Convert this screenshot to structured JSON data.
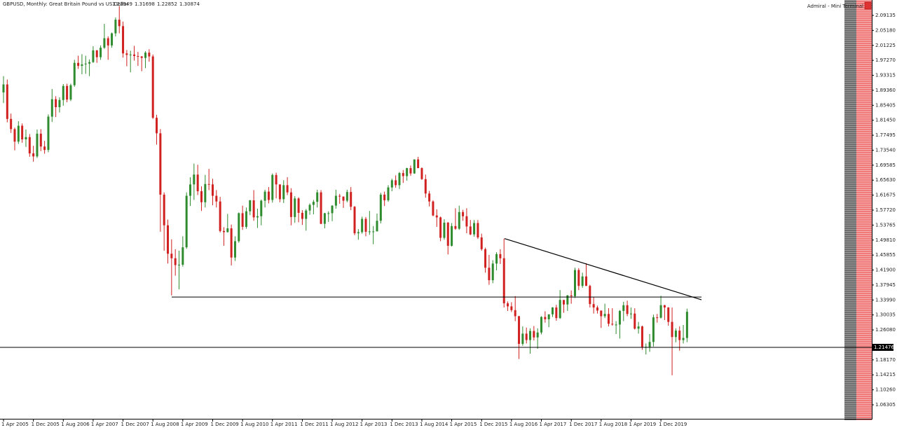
{
  "chart_data": {
    "type": "candlestick",
    "title": "GBPUSD, Monthly:  Great Britain Pound vs US Dollar",
    "terminal_label": "Admiral - Mini Terminal",
    "up_color": "#2e8b2e",
    "down_color": "#d0201f",
    "categories": [
      "1 Apr 2005",
      null,
      null,
      null,
      null,
      null,
      null,
      null,
      "1 Dec 2005",
      null,
      null,
      null,
      null,
      null,
      null,
      null,
      "1 Aug 2006",
      null,
      null,
      null,
      null,
      null,
      null,
      null,
      "1 Apr 2007",
      null,
      null,
      null,
      null,
      null,
      null,
      null,
      "1 Dec 2007",
      null,
      null,
      null,
      null,
      null,
      null,
      null,
      "1 Aug 2008",
      null,
      null,
      null,
      null,
      null,
      null,
      null,
      "1 Apr 2009",
      null,
      null,
      null,
      null,
      null,
      null,
      null,
      "1 Dec 2009",
      null,
      null,
      null,
      null,
      null,
      null,
      null,
      "1 Aug 2010",
      null,
      null,
      null,
      null,
      null,
      null,
      null,
      "1 Apr 2011",
      null,
      null,
      null,
      null,
      null,
      null,
      null,
      "1 Dec 2011",
      null,
      null,
      null,
      null,
      null,
      null,
      null,
      "1 Aug 2012",
      null,
      null,
      null,
      null,
      null,
      null,
      null,
      "1 Apr 2013",
      null,
      null,
      null,
      null,
      null,
      null,
      null,
      "1 Dec 2013",
      null,
      null,
      null,
      null,
      null,
      null,
      null,
      "1 Aug 2014",
      null,
      null,
      null,
      null,
      null,
      null,
      null,
      "1 Apr 2015",
      null,
      null,
      null,
      null,
      null,
      null,
      null,
      "1 Dec 2015",
      null,
      null,
      null,
      null,
      null,
      null,
      null,
      "1 Aug 2016",
      null,
      null,
      null,
      null,
      null,
      null,
      null,
      "1 Apr 2017",
      null,
      null,
      null,
      null,
      null,
      null,
      null,
      "1 Dec 2017",
      null,
      null,
      null,
      null,
      null,
      null,
      null,
      "1 Aug 2018",
      null,
      null,
      null,
      null,
      null,
      null,
      null,
      "1 Apr 2019",
      null,
      null,
      null,
      null,
      null,
      null,
      null,
      "1 Dec 2019",
      null,
      null,
      null,
      null,
      null,
      null,
      null
    ],
    "open": [
      1.888,
      1.909,
      1.818,
      1.791,
      1.758,
      1.8,
      1.764,
      1.77,
      1.727,
      1.719,
      1.779,
      1.745,
      1.736,
      1.824,
      1.87,
      1.849,
      1.868,
      1.905,
      1.869,
      1.907,
      1.966,
      1.958,
      1.962,
      1.964,
      1.968,
      1.999,
      1.981,
      2.006,
      2.031,
      2.012,
      2.044,
      2.08,
      2.063,
      1.991,
      1.987,
      1.988,
      1.984,
      1.983,
      1.979,
      1.993,
      1.983,
      1.821,
      1.78,
      1.618,
      1.537,
      1.462,
      1.45,
      1.432,
      1.433,
      1.479,
      1.615,
      1.645,
      1.671,
      1.627,
      1.598,
      1.646,
      1.645,
      1.615,
      1.6,
      1.522,
      1.519,
      1.529,
      1.452,
      1.495,
      1.569,
      1.533,
      1.574,
      1.603,
      1.558,
      1.561,
      1.602,
      1.626,
      1.604,
      1.67,
      1.645,
      1.606,
      1.643,
      1.624,
      1.559,
      1.608,
      1.57,
      1.554,
      1.576,
      1.591,
      1.599,
      1.624,
      1.541,
      1.569,
      1.569,
      1.589,
      1.615,
      1.613,
      1.602,
      1.625,
      1.586,
      1.516,
      1.519,
      1.554,
      1.52,
      1.521,
      1.521,
      1.549,
      1.618,
      1.603,
      1.637,
      1.656,
      1.643,
      1.675,
      1.667,
      1.688,
      1.674,
      1.711,
      1.688,
      1.659,
      1.621,
      1.6,
      1.563,
      1.558,
      1.504,
      1.544,
      1.483,
      1.535,
      1.528,
      1.572,
      1.561,
      1.534,
      1.513,
      1.543,
      1.505,
      1.474,
      1.425,
      1.392,
      1.436,
      1.461,
      1.45,
      1.331,
      1.323,
      1.313,
      1.297,
      1.224,
      1.251,
      1.234,
      1.258,
      1.241,
      1.254,
      1.295,
      1.289,
      1.302,
      1.32,
      1.292,
      1.34,
      1.328,
      1.352,
      1.35,
      1.419,
      1.377,
      1.402,
      1.377,
      1.329,
      1.32,
      1.312,
      1.297,
      1.303,
      1.277,
      1.275,
      1.275,
      1.311,
      1.326,
      1.303,
      1.304,
      1.264,
      1.27,
      1.216,
      1.216,
      1.229,
      1.294,
      1.293,
      1.326,
      1.32,
      1.282,
      1.242,
      1.259,
      1.234,
      1.23949
    ],
    "high": [
      1.931,
      1.922,
      1.832,
      1.795,
      1.812,
      1.806,
      1.79,
      1.778,
      1.747,
      1.79,
      1.791,
      1.76,
      1.83,
      1.897,
      1.878,
      1.875,
      1.91,
      1.911,
      1.911,
      1.974,
      1.985,
      1.989,
      1.985,
      1.975,
      2.01,
      2.0,
      2.012,
      2.069,
      2.036,
      2.046,
      2.086,
      2.116,
      2.075,
      2.0,
      1.998,
      2.011,
      1.995,
      1.984,
      1.997,
      2.002,
      1.988,
      1.829,
      1.791,
      1.624,
      1.552,
      1.5,
      1.474,
      1.47,
      1.508,
      1.624,
      1.664,
      1.7,
      1.697,
      1.64,
      1.67,
      1.686,
      1.66,
      1.63,
      1.612,
      1.532,
      1.567,
      1.539,
      1.508,
      1.571,
      1.589,
      1.584,
      1.604,
      1.63,
      1.581,
      1.605,
      1.631,
      1.638,
      1.674,
      1.676,
      1.645,
      1.656,
      1.664,
      1.635,
      1.614,
      1.611,
      1.577,
      1.58,
      1.595,
      1.604,
      1.631,
      1.63,
      1.57,
      1.574,
      1.59,
      1.631,
      1.62,
      1.613,
      1.631,
      1.638,
      1.588,
      1.527,
      1.56,
      1.559,
      1.575,
      1.535,
      1.568,
      1.623,
      1.626,
      1.643,
      1.66,
      1.669,
      1.678,
      1.683,
      1.689,
      1.695,
      1.711,
      1.718,
      1.69,
      1.671,
      1.628,
      1.603,
      1.579,
      1.56,
      1.553,
      1.546,
      1.543,
      1.582,
      1.589,
      1.578,
      1.582,
      1.551,
      1.551,
      1.551,
      1.515,
      1.478,
      1.459,
      1.445,
      1.466,
      1.474,
      1.502,
      1.336,
      1.334,
      1.35,
      1.298,
      1.27,
      1.267,
      1.265,
      1.271,
      1.265,
      1.297,
      1.31,
      1.302,
      1.321,
      1.327,
      1.366,
      1.336,
      1.353,
      1.365,
      1.425,
      1.424,
      1.412,
      1.437,
      1.38,
      1.347,
      1.325,
      1.31,
      1.33,
      1.318,
      1.318,
      1.284,
      1.313,
      1.335,
      1.338,
      1.32,
      1.318,
      1.282,
      1.272,
      1.225,
      1.25,
      1.301,
      1.303,
      1.351,
      1.327,
      1.321,
      1.32,
      1.265,
      1.27,
      1.274,
      1.31698
    ],
    "low": [
      1.86,
      1.809,
      1.781,
      1.735,
      1.752,
      1.755,
      1.744,
      1.718,
      1.705,
      1.715,
      1.733,
      1.726,
      1.73,
      1.81,
      1.823,
      1.835,
      1.853,
      1.862,
      1.865,
      1.903,
      1.95,
      1.936,
      1.937,
      1.931,
      1.966,
      1.966,
      1.974,
      2.003,
      1.974,
      2.006,
      2.036,
      2.044,
      1.98,
      1.957,
      1.941,
      1.972,
      1.958,
      1.944,
      1.952,
      1.969,
      1.818,
      1.75,
      1.52,
      1.47,
      1.436,
      1.352,
      1.404,
      1.368,
      1.428,
      1.475,
      1.588,
      1.604,
      1.617,
      1.575,
      1.584,
      1.63,
      1.59,
      1.584,
      1.518,
      1.483,
      1.518,
      1.431,
      1.443,
      1.491,
      1.525,
      1.528,
      1.564,
      1.549,
      1.53,
      1.537,
      1.584,
      1.595,
      1.597,
      1.608,
      1.598,
      1.596,
      1.617,
      1.537,
      1.544,
      1.545,
      1.538,
      1.523,
      1.565,
      1.566,
      1.584,
      1.54,
      1.529,
      1.546,
      1.548,
      1.581,
      1.594,
      1.583,
      1.598,
      1.577,
      1.511,
      1.499,
      1.515,
      1.508,
      1.512,
      1.487,
      1.521,
      1.542,
      1.588,
      1.599,
      1.627,
      1.636,
      1.633,
      1.649,
      1.655,
      1.668,
      1.673,
      1.688,
      1.657,
      1.61,
      1.587,
      1.561,
      1.533,
      1.495,
      1.499,
      1.46,
      1.481,
      1.525,
      1.525,
      1.549,
      1.516,
      1.511,
      1.507,
      1.501,
      1.47,
      1.412,
      1.38,
      1.384,
      1.418,
      1.435,
      1.32,
      1.311,
      1.308,
      1.284,
      1.184,
      1.219,
      1.225,
      1.198,
      1.233,
      1.211,
      1.249,
      1.28,
      1.268,
      1.295,
      1.285,
      1.29,
      1.306,
      1.311,
      1.33,
      1.345,
      1.366,
      1.372,
      1.377,
      1.32,
      1.304,
      1.304,
      1.266,
      1.292,
      1.27,
      1.272,
      1.25,
      1.238,
      1.284,
      1.297,
      1.29,
      1.262,
      1.251,
      1.208,
      1.196,
      1.203,
      1.217,
      1.28,
      1.291,
      1.287,
      1.272,
      1.141,
      1.228,
      1.206,
      1.225,
      1.22852
    ],
    "close": [
      1.909,
      1.818,
      1.791,
      1.758,
      1.8,
      1.764,
      1.77,
      1.727,
      1.719,
      1.779,
      1.745,
      1.736,
      1.824,
      1.87,
      1.849,
      1.868,
      1.905,
      1.869,
      1.907,
      1.966,
      1.958,
      1.962,
      1.964,
      1.968,
      1.999,
      1.981,
      2.006,
      2.031,
      2.012,
      2.044,
      2.08,
      2.063,
      1.991,
      1.987,
      1.988,
      1.984,
      1.983,
      1.979,
      1.993,
      1.983,
      1.821,
      1.78,
      1.618,
      1.537,
      1.462,
      1.45,
      1.432,
      1.433,
      1.479,
      1.615,
      1.645,
      1.671,
      1.627,
      1.598,
      1.646,
      1.645,
      1.615,
      1.6,
      1.522,
      1.519,
      1.529,
      1.452,
      1.495,
      1.569,
      1.533,
      1.574,
      1.603,
      1.558,
      1.561,
      1.602,
      1.626,
      1.604,
      1.67,
      1.645,
      1.606,
      1.643,
      1.624,
      1.559,
      1.608,
      1.57,
      1.554,
      1.576,
      1.591,
      1.599,
      1.624,
      1.541,
      1.569,
      1.569,
      1.589,
      1.615,
      1.613,
      1.602,
      1.625,
      1.586,
      1.516,
      1.519,
      1.554,
      1.52,
      1.521,
      1.521,
      1.549,
      1.618,
      1.603,
      1.637,
      1.656,
      1.643,
      1.675,
      1.667,
      1.688,
      1.674,
      1.711,
      1.688,
      1.659,
      1.621,
      1.6,
      1.563,
      1.558,
      1.504,
      1.544,
      1.483,
      1.535,
      1.528,
      1.572,
      1.561,
      1.534,
      1.513,
      1.543,
      1.505,
      1.474,
      1.425,
      1.392,
      1.436,
      1.461,
      1.45,
      1.331,
      1.323,
      1.313,
      1.297,
      1.224,
      1.251,
      1.234,
      1.258,
      1.241,
      1.254,
      1.295,
      1.289,
      1.302,
      1.32,
      1.292,
      1.34,
      1.328,
      1.352,
      1.35,
      1.419,
      1.377,
      1.402,
      1.377,
      1.329,
      1.32,
      1.312,
      1.297,
      1.303,
      1.277,
      1.275,
      1.275,
      1.311,
      1.326,
      1.303,
      1.304,
      1.264,
      1.27,
      1.216,
      1.216,
      1.229,
      1.294,
      1.293,
      1.326,
      1.32,
      1.282,
      1.242,
      1.259,
      1.234,
      1.23949,
      1.30874
    ],
    "ylim": [
      1.0261,
      2.132
    ],
    "yticks": [
      2.09135,
      {
        "value": 2.0518,
        "label": "2.05180"
      },
      2.01225,
      {
        "value": 1.9727,
        "label": "1.97270"
      },
      1.93315,
      {
        "value": 1.8936,
        "label": "1.89360"
      },
      1.85405,
      {
        "value": 1.8145,
        "label": "1.81450"
      },
      1.77495,
      {
        "value": 1.7354,
        "label": "1.73540"
      },
      1.69585,
      {
        "value": 1.6563,
        "label": "1.65630"
      },
      1.61675,
      {
        "value": 1.5772,
        "label": "1.57720"
      },
      1.53765,
      {
        "value": 1.4981,
        "label": "1.49810"
      },
      1.45855,
      {
        "value": 1.419,
        "label": "1.41900"
      },
      1.37945,
      {
        "value": 1.3399,
        "label": "1.33990"
      },
      1.30035,
      {
        "value": 1.2608,
        "label": "1.26080"
      },
      {
        "value": 1.1817,
        "label": "1.18170"
      },
      1.14215,
      {
        "value": 1.1026,
        "label": "1.10260"
      },
      1.06305
    ],
    "support_line": 1.3477,
    "trendline": [
      1.502,
      1.3403
    ],
    "price_line": 1.21476
  }
}
